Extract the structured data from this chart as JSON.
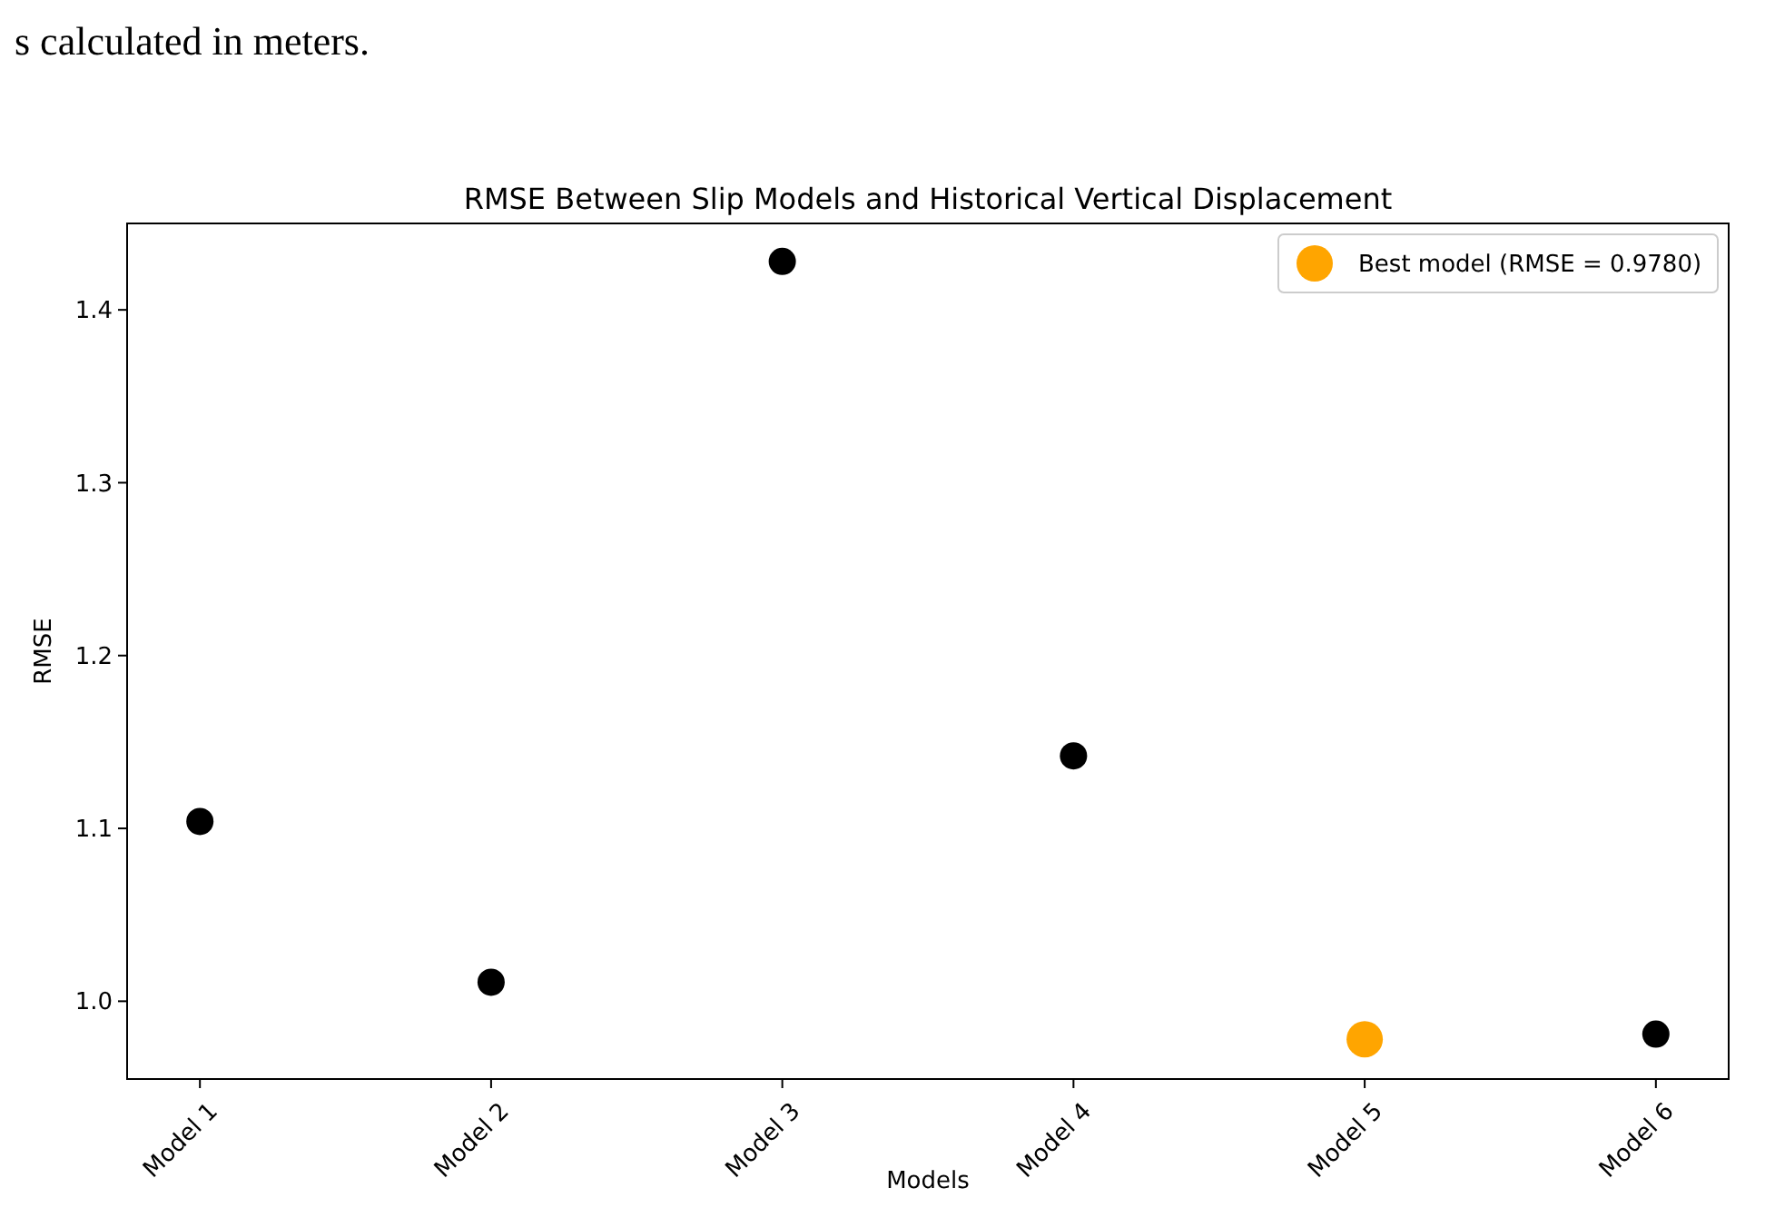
{
  "chart_data": {
    "type": "scatter",
    "title": "RMSE Between Slip Models and Historical Vertical Displacement",
    "xlabel": "Models",
    "ylabel": "RMSE",
    "categories": [
      "Model 1",
      "Model 2",
      "Model 3",
      "Model 4",
      "Model 5",
      "Model 6"
    ],
    "series": [
      {
        "color": "#000000",
        "values": [
          1.104,
          1.011,
          1.428,
          1.142,
          null,
          0.981
        ]
      },
      {
        "name": "Best model (RMSE = 0.9780)",
        "color": "#ffa500",
        "x": [
          "Model 5"
        ],
        "values": [
          0.978
        ]
      }
    ],
    "ylim": [
      0.955,
      1.45
    ],
    "yticks": [
      {
        "value": 1,
        "label": "1.0"
      },
      1.1,
      1.2,
      1.3,
      1.4
    ],
    "legend": "top right",
    "marker": "circle",
    "annotations": [
      "s calculated in meters."
    ]
  }
}
